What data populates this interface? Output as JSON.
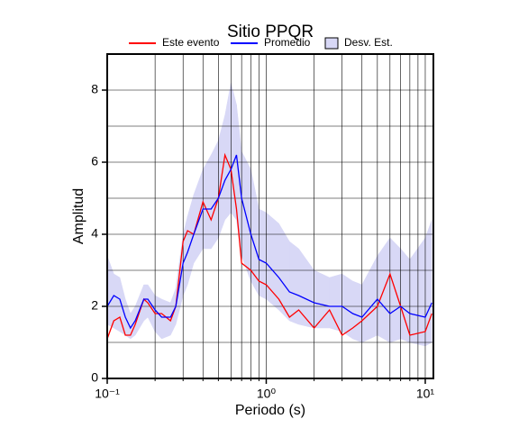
{
  "chart_data": {
    "type": "line",
    "title": "Sitio PPQR",
    "xlabel": "Periodo (s)",
    "ylabel": "Amplitud",
    "xscale": "log",
    "xlim": [
      0.1,
      11.25
    ],
    "ylim": [
      0,
      9
    ],
    "xticks": [
      {
        "value": 0.1,
        "label": "10⁻¹"
      },
      {
        "value": 1,
        "label": "10⁰"
      },
      {
        "value": 10,
        "label": "10¹"
      }
    ],
    "xminor": [
      0.2,
      0.3,
      0.4,
      0.5,
      0.6,
      0.7,
      0.8,
      0.9,
      2,
      3,
      4,
      5,
      6,
      7,
      8,
      9
    ],
    "yticks": [
      0,
      2,
      4,
      6,
      8
    ],
    "yminor": [
      1,
      3,
      5,
      7
    ],
    "grid": true,
    "x": [
      0.1,
      0.11,
      0.12,
      0.13,
      0.14,
      0.15,
      0.17,
      0.18,
      0.2,
      0.22,
      0.25,
      0.27,
      0.3,
      0.32,
      0.35,
      0.4,
      0.45,
      0.5,
      0.55,
      0.6,
      0.65,
      0.7,
      0.8,
      0.9,
      1.0,
      1.2,
      1.4,
      1.6,
      2.0,
      2.5,
      3.0,
      3.5,
      4.0,
      5.0,
      6.0,
      7.0,
      8.0,
      10.0,
      11.0
    ],
    "band": {
      "name": "Desv. Est.",
      "color": "#d8d8f6",
      "lower": [
        1.5,
        1.4,
        1.3,
        1.2,
        1.1,
        1.2,
        1.6,
        1.7,
        1.3,
        1.1,
        1.2,
        1.5,
        2.3,
        2.6,
        3.2,
        3.6,
        3.6,
        3.9,
        4.4,
        4.6,
        4.4,
        3.4,
        2.7,
        2.3,
        2.2,
        1.9,
        1.6,
        1.5,
        1.4,
        1.4,
        1.3,
        1.1,
        1.0,
        1.2,
        1.0,
        1.1,
        1.0,
        0.9,
        1.0
      ],
      "upper": [
        3.4,
        2.9,
        2.8,
        2.2,
        1.8,
        2.0,
        2.6,
        2.6,
        2.3,
        2.2,
        2.1,
        2.5,
        4.0,
        4.5,
        5.1,
        5.8,
        6.2,
        6.6,
        7.3,
        8.2,
        7.6,
        6.3,
        5.8,
        4.7,
        4.6,
        4.3,
        3.8,
        3.6,
        3.0,
        2.8,
        2.9,
        2.7,
        2.6,
        3.4,
        3.9,
        3.6,
        3.3,
        3.9,
        4.4
      ]
    },
    "series": [
      {
        "name": "Este evento",
        "color": "#ff0000",
        "values": [
          1.1,
          1.6,
          1.7,
          1.2,
          1.2,
          1.5,
          2.2,
          2.1,
          1.8,
          1.8,
          1.6,
          2.0,
          3.8,
          4.1,
          4.0,
          4.9,
          4.4,
          5.0,
          6.2,
          5.8,
          4.7,
          3.2,
          3.0,
          2.7,
          2.6,
          2.2,
          1.7,
          1.9,
          1.4,
          1.9,
          1.2,
          1.4,
          1.6,
          2.0,
          2.9,
          2.0,
          1.2,
          1.3,
          1.8
        ]
      },
      {
        "name": "Promedio",
        "color": "#0000ff",
        "values": [
          2.0,
          2.3,
          2.2,
          1.7,
          1.4,
          1.6,
          2.2,
          2.2,
          1.9,
          1.7,
          1.7,
          2.0,
          3.2,
          3.5,
          4.0,
          4.7,
          4.7,
          5.0,
          5.5,
          5.8,
          6.2,
          5.0,
          4.0,
          3.3,
          3.2,
          2.8,
          2.4,
          2.3,
          2.1,
          2.0,
          2.0,
          1.8,
          1.7,
          2.2,
          1.8,
          2.0,
          1.8,
          1.7,
          2.1
        ]
      }
    ]
  }
}
